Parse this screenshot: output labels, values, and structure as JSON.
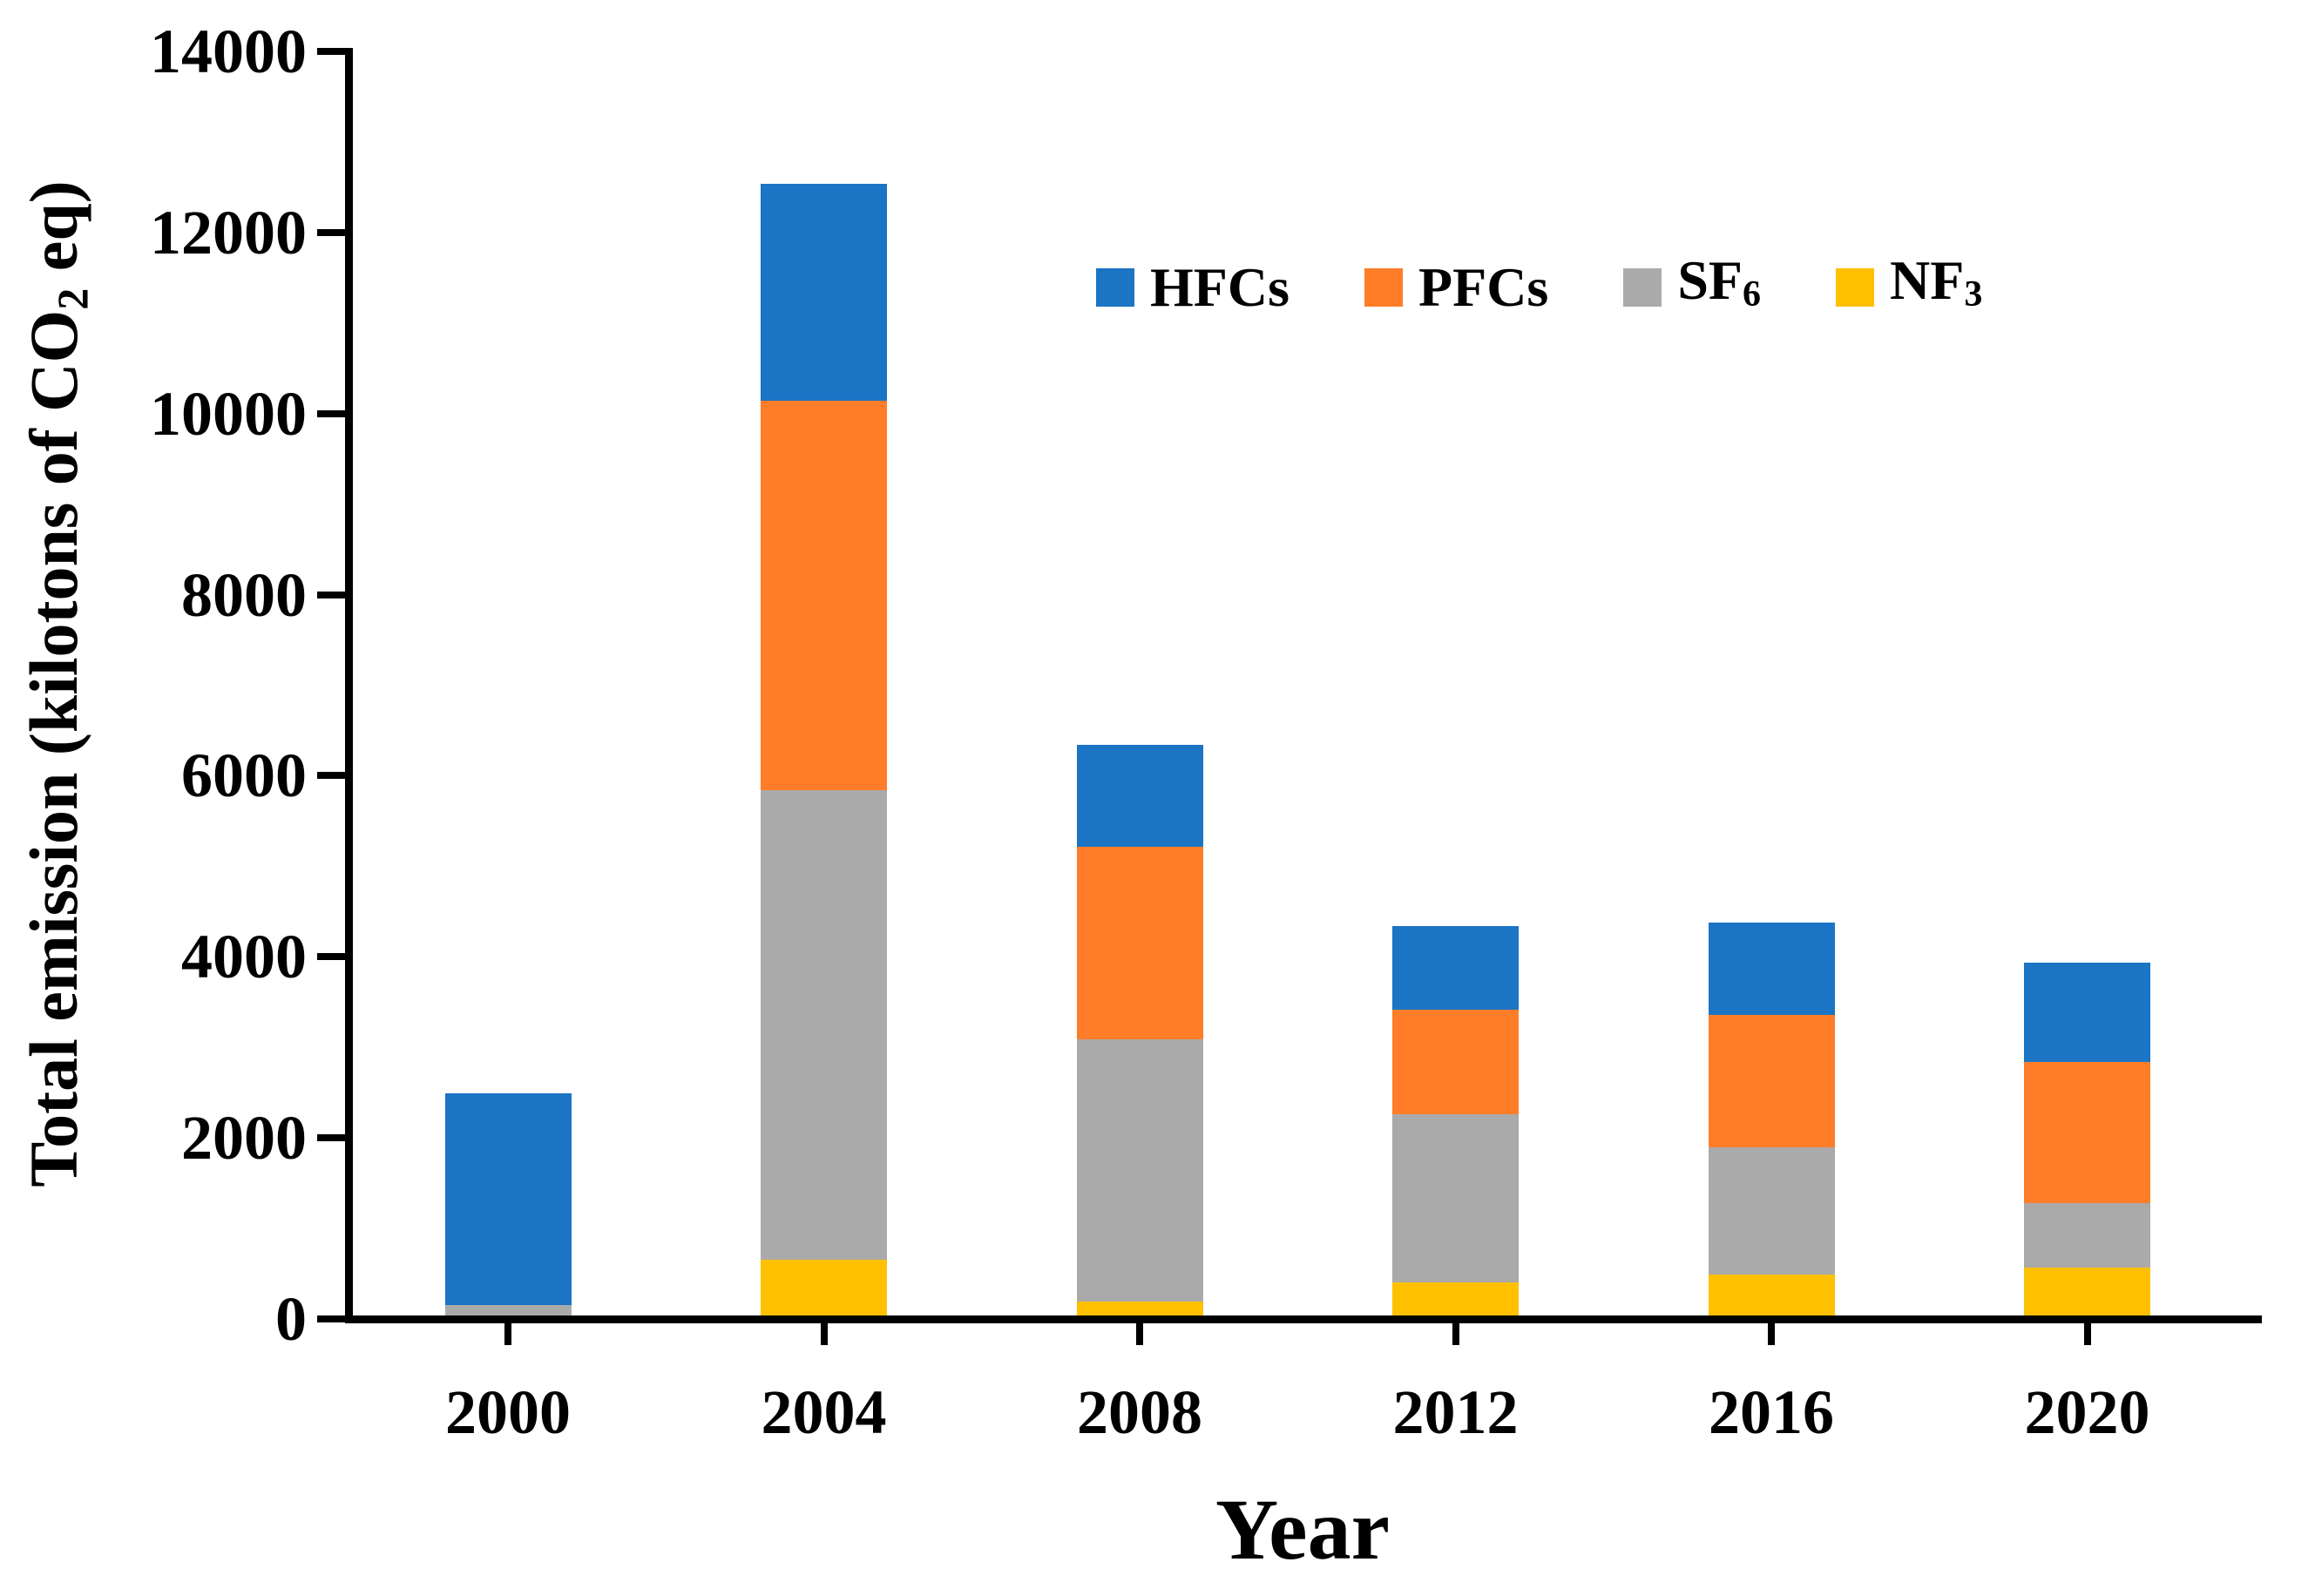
{
  "figure": {
    "ylabel_pre": "Total emission (kilotons of CO",
    "ylabel_sub": "2",
    "ylabel_post": " eq)",
    "xlabel": "Year"
  },
  "chart_data": {
    "type": "bar",
    "stacked": true,
    "title": "",
    "xlabel": "Year",
    "ylabel": "Total emission (kilotons of CO2 eq)",
    "categories": [
      "2000",
      "2004",
      "2008",
      "2012",
      "2016",
      "2020"
    ],
    "series": [
      {
        "name": "HFCs",
        "color": "#1B74C4",
        "values": [
          2330,
          2400,
          1120,
          920,
          1020,
          1100
        ]
      },
      {
        "name": "PFCs",
        "color": "#FF7D28",
        "values": [
          0,
          4300,
          2130,
          1160,
          1460,
          1560
        ]
      },
      {
        "name": "SF6",
        "color": "#AAAAAA",
        "values": [
          120,
          5180,
          2900,
          1850,
          1410,
          710
        ]
      },
      {
        "name": "NF3",
        "color": "#FFC002",
        "values": [
          0,
          620,
          150,
          370,
          450,
          530
        ]
      }
    ],
    "totals": [
      2450,
      12500,
      6300,
      4300,
      4340,
      3900
    ],
    "stack_order_bottom_to_top": [
      "NF3",
      "SF6",
      "PFCs",
      "HFCs"
    ],
    "ylim": [
      0,
      14000
    ],
    "yticks": [
      0,
      2000,
      4000,
      6000,
      8000,
      10000,
      12000,
      14000
    ],
    "legend": [
      {
        "label": "HFCs",
        "sub": "",
        "series": "HFCs"
      },
      {
        "label": "PFCs",
        "sub": "",
        "series": "PFCs"
      },
      {
        "label": "SF",
        "sub": "6",
        "series": "SF6"
      },
      {
        "label": "NF",
        "sub": "3",
        "series": "NF3"
      }
    ],
    "legend_position": "inside-upper-right",
    "grid": false,
    "axis_color": "#000000",
    "background_color": "#FFFFFF"
  }
}
